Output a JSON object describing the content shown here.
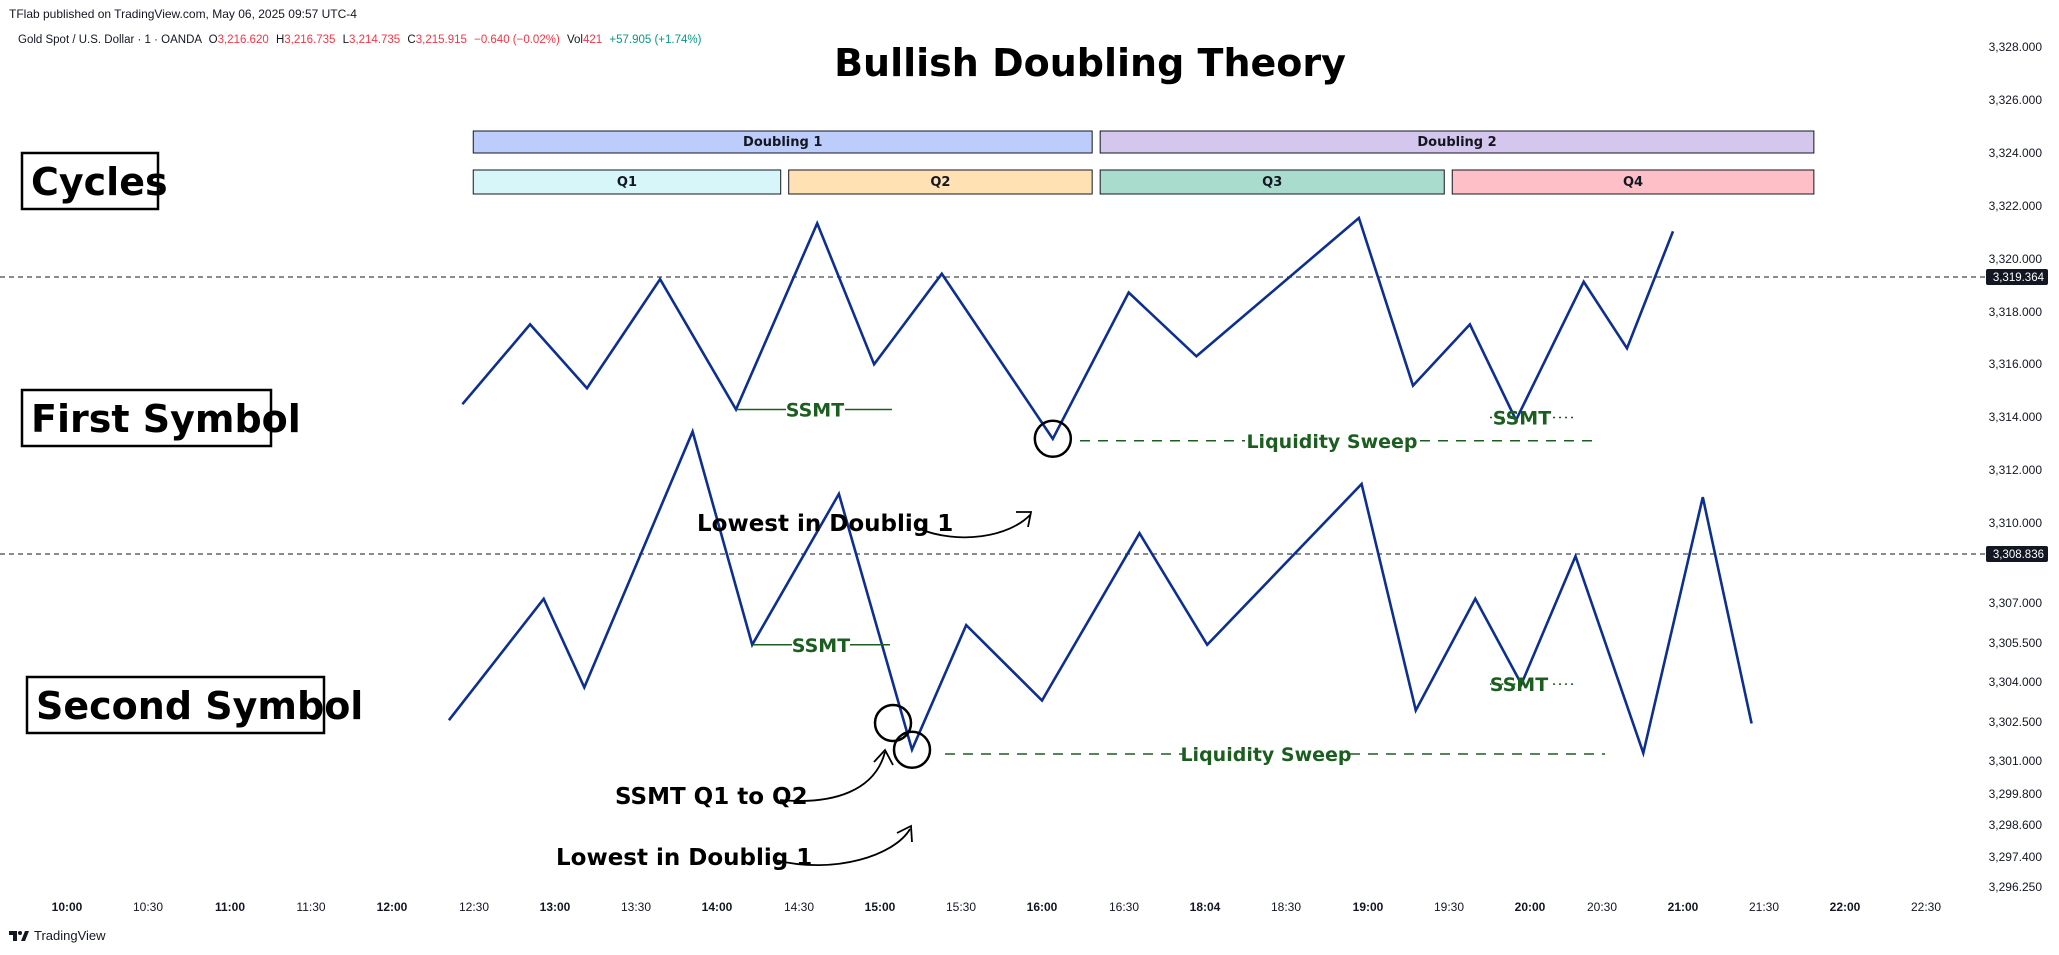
{
  "header": {
    "published_by": "TFlab published on TradingView.com, May 06, 2025 09:57 UTC-4"
  },
  "legend": {
    "symbol": "Gold Spot / U.S. Dollar · 1 · OANDA",
    "open_label": "O",
    "open": "3,216.620",
    "high_label": "H",
    "high": "3,216.735",
    "low_label": "L",
    "low": "3,214.735",
    "close_label": "C",
    "close": "3,215.915",
    "change": "−0.640 (−0.02%)",
    "vol_label": "Vol",
    "vol": "421",
    "session_change": "+57.905 (+1.74%)"
  },
  "footer": {
    "brand": "TradingView"
  },
  "colors": {
    "line": "#0d2f8f",
    "annotation_green": "#1b5e20",
    "doubling_1": "#bcccfb",
    "doubling_2": "#d4c6ec",
    "q1": "#d6f6f9",
    "q2": "#ffe1b3",
    "q3": "#a9dccd",
    "q4": "#ffbfc7",
    "price_badge": "#131722"
  },
  "chart_data": [
    {
      "type": "line",
      "title": "Bullish Doubling Theory",
      "labels": {
        "cycles": "Cycles",
        "first_symbol": "First Symbol",
        "second_symbol": "Second Symbol"
      },
      "x_ticks": [
        "10:00",
        "10:30",
        "11:00",
        "11:30",
        "12:00",
        "12:30",
        "13:00",
        "13:30",
        "14:00",
        "14:30",
        "15:00",
        "15:30",
        "16:00",
        "16:30",
        "18:04",
        "18:30",
        "19:00",
        "19:30",
        "20:00",
        "20:30",
        "21:00",
        "21:30",
        "22:00",
        "22:30"
      ],
      "x_ticks_bold": [
        "10:00",
        "11:00",
        "12:00",
        "13:00",
        "14:00",
        "15:00",
        "16:00",
        "18:04",
        "19:00",
        "20:00",
        "21:00",
        "22:00"
      ],
      "grid": false,
      "cycles": {
        "doublings": [
          {
            "label": "Doubling 1",
            "start": "12:30",
            "end": "16:20"
          },
          {
            "label": "Doubling 2",
            "start": "16:20",
            "end": "20:45"
          }
        ],
        "quarters": [
          {
            "label": "Q1",
            "start": "12:30",
            "end": "14:25"
          },
          {
            "label": "Q2",
            "start": "14:25",
            "end": "16:20"
          },
          {
            "label": "Q3",
            "start": "16:20",
            "end": "18:30"
          },
          {
            "label": "Q4",
            "start": "18:30",
            "end": "20:45"
          }
        ]
      },
      "y_axis": {
        "ticks": [
          "3,328.000",
          "3,326.000",
          "3,324.000",
          "3,322.000",
          "3,320.000",
          "3,318.000",
          "3,316.000",
          "3,314.000",
          "3,312.000",
          "3,310.000",
          "3,307.000",
          "3,305.500",
          "3,304.000",
          "3,302.500",
          "3,301.000",
          "3,299.800",
          "3,298.600",
          "3,297.400",
          "3,296.250"
        ],
        "price_badges": [
          "3,319.364",
          "3,308.836"
        ]
      },
      "first_symbol": {
        "x": [
          "12:26",
          "12:51",
          "13:12",
          "13:39",
          "14:07",
          "14:37",
          "14:58",
          "15:23",
          "16:04",
          "16:32",
          "16:57",
          "17:57",
          "18:17",
          "18:38",
          "18:55",
          "19:20",
          "19:36",
          "19:53"
        ],
        "y": [
          3312.1,
          3315.1,
          3312.7,
          3316.8,
          3311.9,
          3318.9,
          3313.6,
          3317.0,
          3310.8,
          3316.3,
          3313.9,
          3319.1,
          3312.8,
          3315.1,
          3311.5,
          3316.7,
          3314.2,
          3318.6
        ],
        "annotations": [
          {
            "text": "SSMT",
            "kind": "ssmt_solid",
            "y": 3311.9
          },
          {
            "text": "SSMT",
            "kind": "ssmt_dotted",
            "y": 3311.6
          },
          {
            "text": "Liquidity Sweep",
            "kind": "dashed_level",
            "y": 3310.8
          },
          {
            "text": "Lowest in Doublig 1",
            "kind": "arrow_label"
          }
        ]
      },
      "second_symbol": {
        "x": [
          "12:21",
          "12:56",
          "13:11",
          "13:51",
          "14:13",
          "14:45",
          "15:12",
          "15:32",
          "16:00",
          "16:36",
          "17:01",
          "17:58",
          "18:18",
          "18:40",
          "18:57",
          "19:17",
          "19:42",
          "20:04",
          "20:22"
        ],
        "y": [
          3300.0,
          3303.7,
          3301.0,
          3308.8,
          3302.3,
          3306.9,
          3299.1,
          3302.9,
          3300.6,
          3305.7,
          3302.3,
          3307.2,
          3300.3,
          3303.7,
          3301.1,
          3305.0,
          3299.0,
          3306.8,
          3299.9
        ],
        "annotations": [
          {
            "text": "SSMT",
            "kind": "ssmt_solid",
            "y": 3302.3
          },
          {
            "text": "SSMT",
            "kind": "ssmt_dotted",
            "y": 3301.1
          },
          {
            "text": "Liquidity Sweep",
            "kind": "dashed_level",
            "y": 3299.0
          },
          {
            "text": "SSMT Q1 to Q2",
            "kind": "arrow_label"
          },
          {
            "text": "Lowest in Doublig 1",
            "kind": "arrow_label"
          }
        ]
      }
    }
  ]
}
